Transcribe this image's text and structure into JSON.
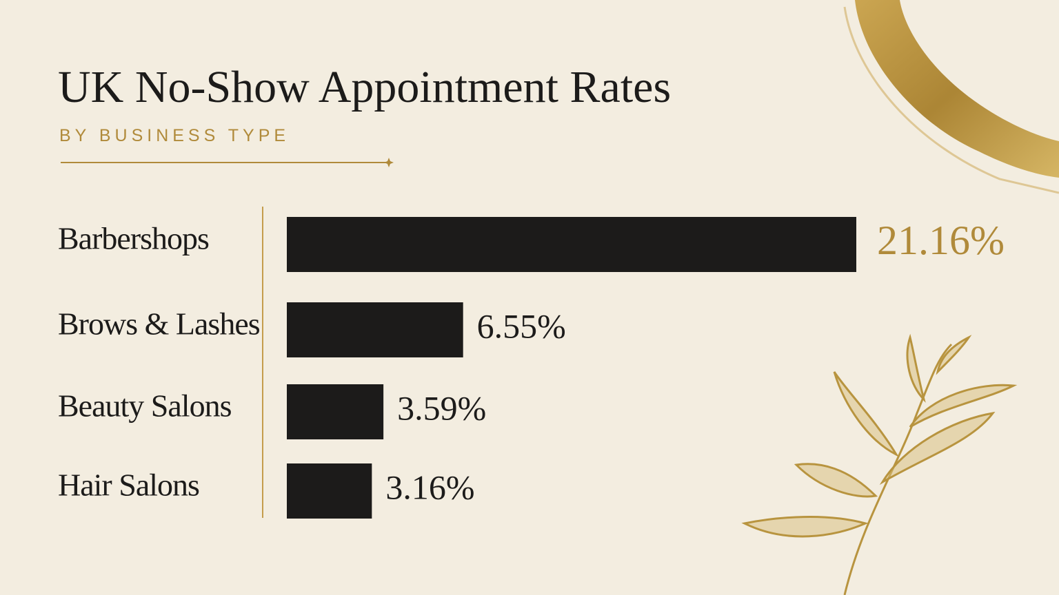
{
  "chart_data": {
    "type": "bar",
    "orientation": "horizontal",
    "title": "UK No-Show Appointment Rates",
    "subtitle": "BY BUSINESS TYPE",
    "categories": [
      "Barbershops",
      "Brows & Lashes",
      "Beauty Salons",
      "Hair Salons"
    ],
    "values": [
      21.16,
      6.55,
      3.59,
      3.16
    ],
    "value_labels": [
      "21.16%",
      "6.55%",
      "3.59%",
      "3.16%"
    ],
    "color": "#1c1b1a"
  }
}
